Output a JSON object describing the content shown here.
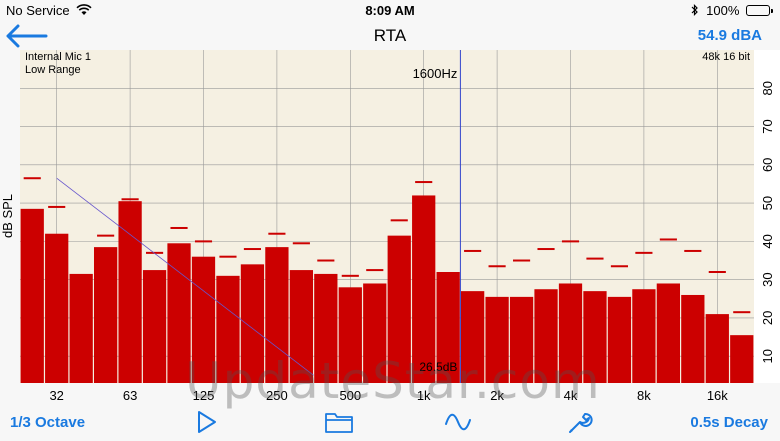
{
  "status_bar": {
    "carrier": "No Service",
    "time": "8:09 AM",
    "battery_pct": "100%"
  },
  "nav": {
    "title": "RTA",
    "level": "54.9 dBA",
    "back_icon": "arrow-left-icon"
  },
  "chart_data": {
    "type": "bar",
    "ylabel": "dB SPL",
    "ylim": [
      3,
      90
    ],
    "yticks": [
      10,
      20,
      30,
      40,
      50,
      60,
      70,
      80
    ],
    "grid": true,
    "info_top_left": [
      "Internal Mic 1",
      "Low Range"
    ],
    "info_top_right": "48k 16 bit",
    "cursor_label": "1600Hz",
    "floor_label": "26.5dB",
    "x_tick_labels": [
      "32",
      "63",
      "125",
      "250",
      "500",
      "1k",
      "2k",
      "4k",
      "8k",
      "16k"
    ],
    "x_tick_band_index": [
      1,
      4,
      7,
      10,
      13,
      16,
      19,
      22,
      25,
      28
    ],
    "values": [
      48.5,
      42,
      31.5,
      38.5,
      50.5,
      32.5,
      39.5,
      36,
      31,
      34,
      38.5,
      32.5,
      31.5,
      28,
      29,
      41.5,
      52,
      32,
      27,
      25.5,
      25.5,
      27.5,
      29,
      27,
      25.5,
      27.5,
      29,
      26,
      21,
      15.5
    ],
    "peaks": [
      56.5,
      49,
      null,
      41.5,
      51,
      37,
      43.5,
      40,
      36,
      38,
      42,
      39.5,
      35,
      31,
      32.5,
      45.5,
      55.5,
      null,
      37.5,
      33.5,
      35,
      38,
      40,
      35.5,
      33.5,
      37,
      40.5,
      37.5,
      32,
      21.5
    ],
    "colors": {
      "bar": "#cc0000",
      "peak": "#cc0000",
      "background": "#f5f0e2",
      "cursor": "#3344cc",
      "grid": "#999999"
    }
  },
  "toolbar": {
    "bandwidth_label": "1/3 Octave",
    "decay_label": "0.5s Decay",
    "play_icon": "play-icon",
    "folder_icon": "folder-icon",
    "curve_icon": "weighting-curve-icon",
    "wrench_icon": "wrench-icon"
  },
  "watermark": "UpdateStar.com"
}
